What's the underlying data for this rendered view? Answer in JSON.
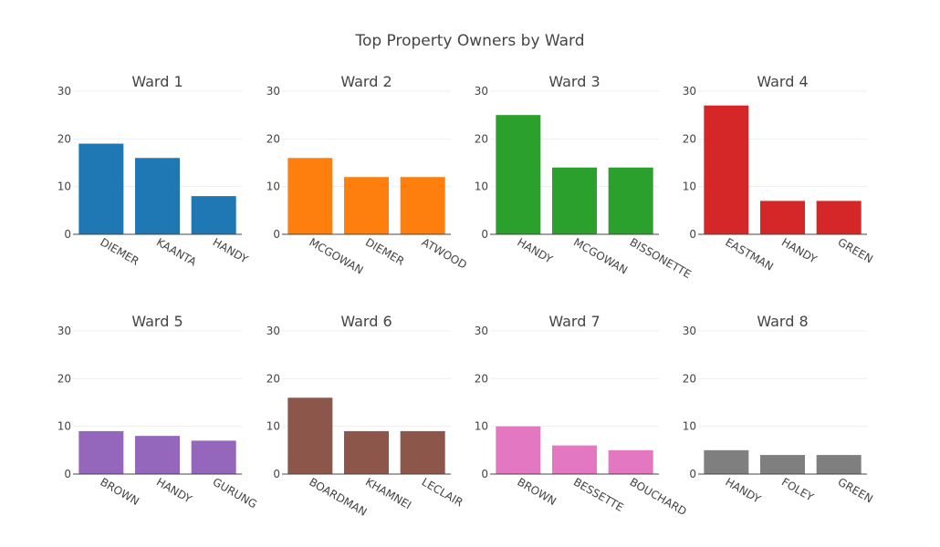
{
  "chart_data": {
    "type": "bar",
    "title": "Top Property Owners by Ward",
    "ylim": [
      0,
      30
    ],
    "yticks": [
      0,
      10,
      20,
      30
    ],
    "grid": true,
    "panels": [
      {
        "title": "Ward 1",
        "color": "#1f77b4",
        "categories": [
          "DIEMER",
          "KAANTA",
          "HANDY"
        ],
        "values": [
          19,
          16,
          8
        ]
      },
      {
        "title": "Ward 2",
        "color": "#ff7f0e",
        "categories": [
          "MCGOWAN",
          "DIEMER",
          "ATWOOD"
        ],
        "values": [
          16,
          12,
          12
        ]
      },
      {
        "title": "Ward 3",
        "color": "#2ca02c",
        "categories": [
          "HANDY",
          "MCGOWAN",
          "BISSONETTE"
        ],
        "values": [
          25,
          14,
          14
        ]
      },
      {
        "title": "Ward 4",
        "color": "#d62728",
        "categories": [
          "EASTMAN",
          "HANDY",
          "GREEN"
        ],
        "values": [
          27,
          7,
          7
        ]
      },
      {
        "title": "Ward 5",
        "color": "#9467bd",
        "categories": [
          "BROWN",
          "HANDY",
          "GURUNG"
        ],
        "values": [
          9,
          8,
          7
        ]
      },
      {
        "title": "Ward 6",
        "color": "#8c564b",
        "categories": [
          "BOARDMAN",
          "KHAMNEI",
          "LECLAIR"
        ],
        "values": [
          16,
          9,
          9
        ]
      },
      {
        "title": "Ward 7",
        "color": "#e377c2",
        "categories": [
          "BROWN",
          "BESSETTE",
          "BOUCHARD"
        ],
        "values": [
          10,
          6,
          5
        ]
      },
      {
        "title": "Ward 8",
        "color": "#7f7f7f",
        "categories": [
          "HANDY",
          "FOLEY",
          "GREEN"
        ],
        "values": [
          5,
          4,
          4
        ]
      }
    ]
  }
}
